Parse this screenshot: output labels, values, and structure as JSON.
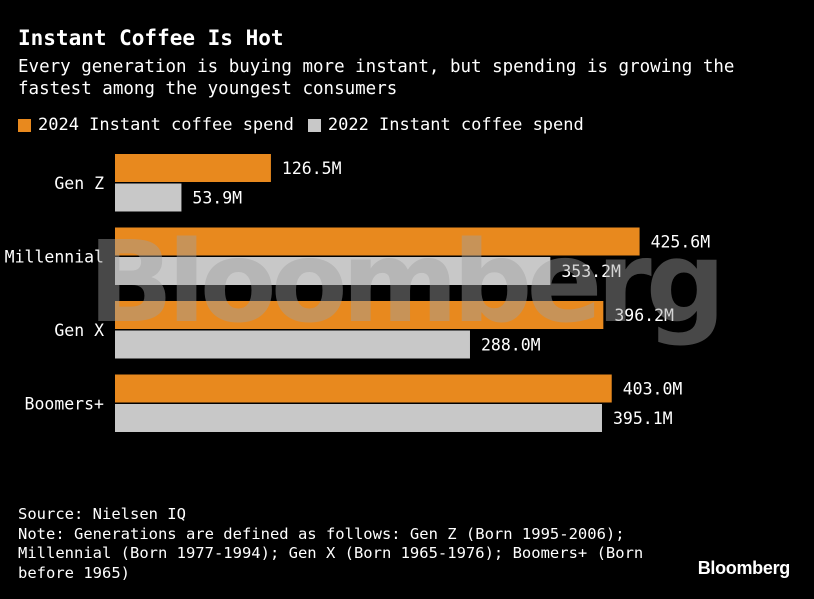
{
  "header": {
    "title": "Instant Coffee Is Hot",
    "subtitle": "Every generation is buying more instant, but spending is growing the fastest among the youngest consumers"
  },
  "colors": {
    "series_2024": "#e8891e",
    "series_2022": "#c8c8c8",
    "background": "#000000"
  },
  "chart_data": {
    "type": "bar",
    "orientation": "horizontal",
    "categories": [
      "Gen Z",
      "Millennial",
      "Gen X",
      "Boomers+"
    ],
    "series": [
      {
        "name": "2024 Instant coffee spend",
        "values": [
          126.5,
          425.6,
          396.2,
          403.0
        ],
        "labels": [
          "126.5M",
          "425.6M",
          "396.2M",
          "403.0M"
        ]
      },
      {
        "name": "2022 Instant coffee spend",
        "values": [
          53.9,
          353.2,
          288.0,
          395.1
        ],
        "labels": [
          "53.9M",
          "353.2M",
          "288.0M",
          "395.1M"
        ]
      }
    ],
    "xlim": [
      0,
      430
    ],
    "grid": false,
    "legend": "top-left"
  },
  "footer": {
    "source": "Source: Nielsen IQ",
    "note": "Note: Generations are defined as follows: Gen Z (Born 1995-2006); Millennial (Born 1977-1994); Gen X (Born 1965-1976); Boomers+ (Born before 1965)"
  },
  "watermark": "Bloomberg",
  "brand": "Bloomberg"
}
